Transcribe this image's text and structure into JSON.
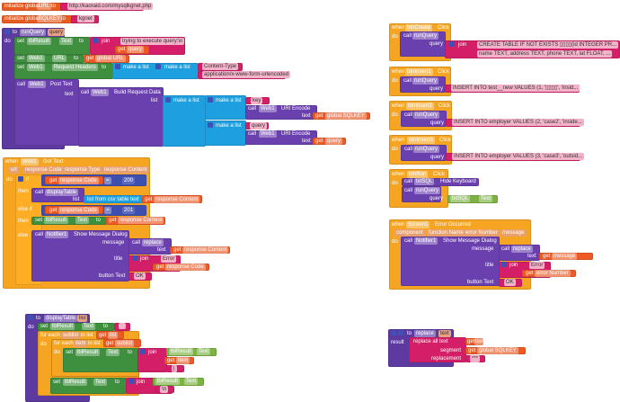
{
  "kw": {
    "initialize_global": "initialize global",
    "to": "to",
    "do": "do",
    "set": "set",
    "call": "call",
    "get": "get",
    "join": "join",
    "make_a_list": "make a list",
    "when": "when",
    "query": "query",
    "text": "text",
    "list": "list",
    "then": "then",
    "else_if": "else if",
    "else": "else",
    "if": "if",
    "message": "message",
    "title": "title",
    "button_text": "button Text",
    "result": "result",
    "for_each": "for each",
    "in_list": "in list",
    "eq": "=",
    "click": "Click",
    "dot": "."
  },
  "globals": {
    "url_name": "URL",
    "url_value": "http://kaoraid.com/mysqlkgnet.php",
    "sqlkey_name": "SQLKEY",
    "sqlkey_value": "kgnet"
  },
  "run_query": {
    "name": "runQuery",
    "param": "query",
    "lblResult": "lblResult",
    "Text": "Text",
    "trying": "trying to execute query:\\n",
    "Web1": "Web1",
    "URL": "URL",
    "global_URL": "global URL",
    "request_headers": "Request Headers",
    "content_type": "Content-Type",
    "content_value": "application/x-www-form-urlencoded",
    "post_text": "Post Text",
    "build_request_data": "Build Request Data",
    "key": "key",
    "uri_encode": "URI Encode",
    "global_SQLKEY": "global SQLKEY"
  },
  "got_text": {
    "event": "Got Text",
    "params": [
      "url",
      "response Code",
      "response Type",
      "response Content"
    ],
    "response_code": "response Code",
    "response_content": "response Content",
    "n200": "200",
    "n201": "201",
    "displayTable": "displayTable",
    "list_from_csv": "list from csv table  text",
    "Notifier1": "Notifier1",
    "show_message_dialog": "Show Message Dialog",
    "replace": "replace",
    "error": "Error",
    "ok": "OK"
  },
  "buttons": [
    {
      "name": "btnCreate",
      "query1": "CREATE TABLE IF NOT EXISTS ▯▯▯▯(id INTEGER PR...",
      "query2": "name TEXT, address TEXT, phone TEXT, lat FLOAT, ..."
    },
    {
      "name": "btnInsert1",
      "query": "INSERT INTO test__new VALUES (1, '▯▯▯▯', 'insid..."
    },
    {
      "name": "btnInsert2",
      "query": "INSERT INTO employer VALUES (2, 'case2', 'inside..."
    },
    {
      "name": "btnInsert3",
      "query": "INSERT INTO employer VALUES (3, 'case3', 'outsid..."
    }
  ],
  "btn_run": {
    "name": "btnRun",
    "txtSQL": "txtSQL",
    "hide_keyboard": "Hide Keyboard",
    "Text": "Text"
  },
  "error_occurred": {
    "component": "Screen1",
    "event": "Error Occurred",
    "params": [
      "component",
      "function Name",
      "error Number",
      "message"
    ],
    "error_number": "error Number"
  },
  "display_table": {
    "name": "displayTable",
    "param": "list",
    "sublist": "sublist",
    "item": "item",
    "empty": "",
    "pipe": "|",
    "newline": "\\n"
  },
  "replace_proc": {
    "name": "replace",
    "param": "text",
    "replace_all": "replace all text",
    "segment": "segment",
    "replacement": "replacement",
    "stars": "***"
  }
}
